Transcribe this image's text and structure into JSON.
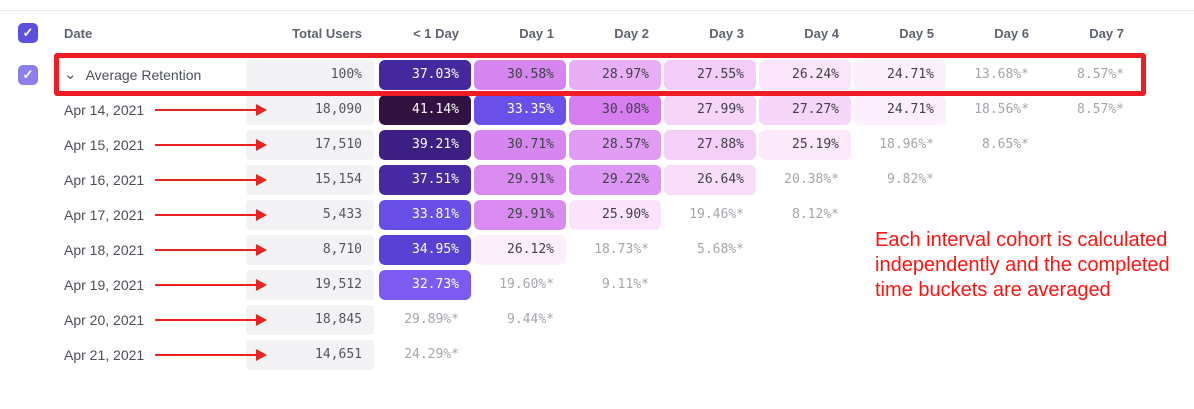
{
  "table": {
    "columns": [
      "Date",
      "Total Users",
      "< 1 Day",
      "Day 1",
      "Day 2",
      "Day 3",
      "Day 4",
      "Day 5",
      "Day 6",
      "Day 7"
    ],
    "rows": [
      {
        "label": "Average Retention",
        "is_average": true,
        "total": "100%",
        "cells": [
          {
            "text": "37.03%",
            "bg": "#46289e",
            "fg": "#ffffff"
          },
          {
            "text": "30.58%",
            "bg": "#d685ef",
            "fg": "#41414a"
          },
          {
            "text": "28.97%",
            "bg": "#e9aff6",
            "fg": "#41414a"
          },
          {
            "text": "27.55%",
            "bg": "#f3cdf8",
            "fg": "#41414a"
          },
          {
            "text": "26.24%",
            "bg": "#fbe5fb",
            "fg": "#41414a"
          },
          {
            "text": "24.71%",
            "bg": "#fdf0fd",
            "fg": "#41414a"
          },
          {
            "text": "13.68%*",
            "bg": "",
            "fg": "#a5a5ad"
          },
          {
            "text": "8.57%*",
            "bg": "",
            "fg": "#a5a5ad"
          }
        ]
      },
      {
        "label": "Apr 14, 2021",
        "is_average": false,
        "total": "18,090",
        "cells": [
          {
            "text": "41.14%",
            "bg": "#321240",
            "fg": "#ffffff"
          },
          {
            "text": "33.35%",
            "bg": "#6a4fe8",
            "fg": "#ffffff"
          },
          {
            "text": "30.08%",
            "bg": "#d77df0",
            "fg": "#41414a"
          },
          {
            "text": "27.99%",
            "bg": "#f6d5f9",
            "fg": "#41414a"
          },
          {
            "text": "27.27%",
            "bg": "#f6d7f9",
            "fg": "#41414a"
          },
          {
            "text": "24.71%",
            "bg": "#fdeffd",
            "fg": "#41414a"
          },
          {
            "text": "18.56%*",
            "bg": "",
            "fg": "#a5a5ad"
          },
          {
            "text": "8.57%*",
            "bg": "",
            "fg": "#a5a5ad"
          }
        ]
      },
      {
        "label": "Apr 15, 2021",
        "is_average": false,
        "total": "17,510",
        "cells": [
          {
            "text": "39.21%",
            "bg": "#3d1e83",
            "fg": "#ffffff"
          },
          {
            "text": "30.71%",
            "bg": "#d687ef",
            "fg": "#41414a"
          },
          {
            "text": "28.57%",
            "bg": "#e19df3",
            "fg": "#41414a"
          },
          {
            "text": "27.88%",
            "bg": "#f4cff8",
            "fg": "#41414a"
          },
          {
            "text": "25.19%",
            "bg": "#fce9fc",
            "fg": "#41414a"
          },
          {
            "text": "18.96%*",
            "bg": "",
            "fg": "#a5a5ad"
          },
          {
            "text": "8.65%*",
            "bg": "",
            "fg": "#a5a5ad"
          }
        ]
      },
      {
        "label": "Apr 16, 2021",
        "is_average": false,
        "total": "15,154",
        "cells": [
          {
            "text": "37.51%",
            "bg": "#4829a4",
            "fg": "#ffffff"
          },
          {
            "text": "29.91%",
            "bg": "#d98bf0",
            "fg": "#41414a"
          },
          {
            "text": "29.22%",
            "bg": "#dc95f2",
            "fg": "#41414a"
          },
          {
            "text": "26.64%",
            "bg": "#f9def9",
            "fg": "#41414a"
          },
          {
            "text": "20.38%*",
            "bg": "",
            "fg": "#a5a5ad"
          },
          {
            "text": "9.82%*",
            "bg": "",
            "fg": "#a5a5ad"
          }
        ]
      },
      {
        "label": "Apr 17, 2021",
        "is_average": false,
        "total": "5,433",
        "cells": [
          {
            "text": "33.81%",
            "bg": "#684ee7",
            "fg": "#ffffff"
          },
          {
            "text": "29.91%",
            "bg": "#d98bf0",
            "fg": "#41414a"
          },
          {
            "text": "25.90%",
            "bg": "#fbe4fb",
            "fg": "#41414a"
          },
          {
            "text": "19.46%*",
            "bg": "",
            "fg": "#a5a5ad"
          },
          {
            "text": "8.12%*",
            "bg": "",
            "fg": "#a5a5ad"
          }
        ]
      },
      {
        "label": "Apr 18, 2021",
        "is_average": false,
        "total": "8,710",
        "cells": [
          {
            "text": "34.95%",
            "bg": "#5941d6",
            "fg": "#ffffff"
          },
          {
            "text": "26.12%",
            "bg": "#fdeefc",
            "fg": "#41414a"
          },
          {
            "text": "18.73%*",
            "bg": "",
            "fg": "#a5a5ad"
          },
          {
            "text": "5.68%*",
            "bg": "",
            "fg": "#a5a5ad"
          }
        ]
      },
      {
        "label": "Apr 19, 2021",
        "is_average": false,
        "total": "19,512",
        "cells": [
          {
            "text": "32.73%",
            "bg": "#7d5bf1",
            "fg": "#ffffff"
          },
          {
            "text": "19.60%*",
            "bg": "",
            "fg": "#a5a5ad"
          },
          {
            "text": "9.11%*",
            "bg": "",
            "fg": "#a5a5ad"
          }
        ]
      },
      {
        "label": "Apr 20, 2021",
        "is_average": false,
        "total": "18,845",
        "cells": [
          {
            "text": "29.89%*",
            "bg": "",
            "fg": "#a5a5ad"
          },
          {
            "text": "9.44%*",
            "bg": "",
            "fg": "#a5a5ad"
          }
        ]
      },
      {
        "label": "Apr 21, 2021",
        "is_average": false,
        "total": "14,651",
        "cells": [
          {
            "text": "24.29%*",
            "bg": "",
            "fg": "#a5a5ad"
          }
        ]
      }
    ]
  },
  "annotations": {
    "note": "Each interval cohort is calculated independently and the completed time buckets are averaged",
    "highlight_color": "#ee1c25",
    "arrow_color": "#e8241f",
    "note_color": "#fb1511"
  },
  "controls": {
    "header_checkbox_checked": true,
    "average_row_checkbox_checked": true,
    "check_glyph": "✓",
    "chevron_glyph": "⌄"
  },
  "colors": {
    "header_checkbox_bg": "#5b50e0",
    "row_checkbox_bg": "#8d7ff0",
    "total_cell_bg": "#f3f3f5",
    "starred_text": "#a5a5ad"
  }
}
